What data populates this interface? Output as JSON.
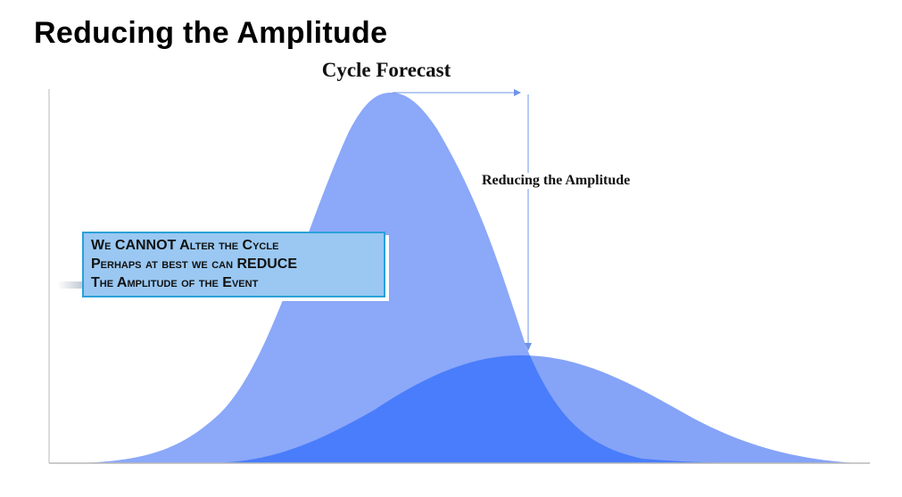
{
  "slide": {
    "title": "Reducing the Amplitude"
  },
  "diagram": {
    "heading": "Cycle Forecast",
    "arrow_label": "Reducing the Amplitude",
    "colors": {
      "tall_curve": "#7e9ff8",
      "short_curve": "#4a7dfb",
      "overlap": "#4a7dfb",
      "arrow": "#6d94e8",
      "axis": "#b8b8b8",
      "note_fill": "#9ac8f2",
      "note_border": "#2ba0d8"
    }
  },
  "note": {
    "lines": [
      "We CANNOT Alter the Cycle",
      "Perhaps at best we can REDUCE",
      "The Amplitude of the Event"
    ]
  }
}
